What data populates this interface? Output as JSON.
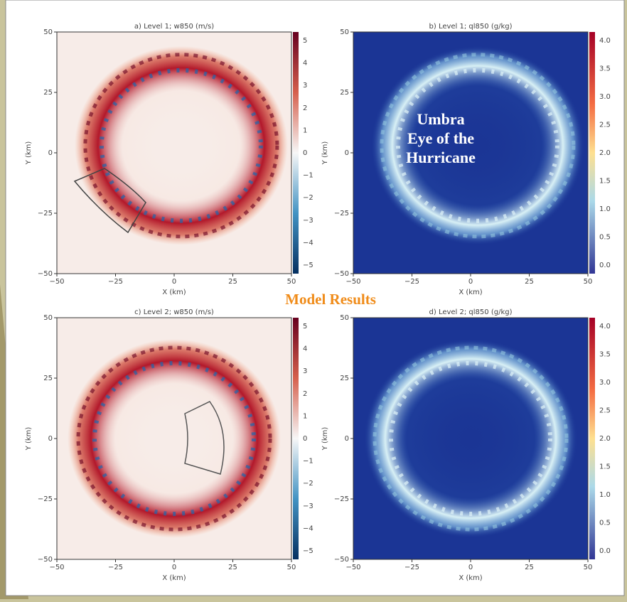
{
  "panels": [
    {
      "title": "a) Level 1;  w850 (m/s)",
      "x_label": "X (km)",
      "y_label": "Y (km)",
      "x_ticks": [
        "−50",
        "−25",
        "0",
        "25",
        "50"
      ],
      "y_ticks": [
        "50",
        "25",
        "0",
        "−25",
        "−50"
      ],
      "colorbar_ticks": [
        "5",
        "4",
        "3",
        "2",
        "1",
        "0",
        "−1",
        "−2",
        "−3",
        "−4",
        "−5"
      ]
    },
    {
      "title": "b) Level 1;  ql850 (g/kg)",
      "x_label": "X (km)",
      "y_label": "Y (km)",
      "x_ticks": [
        "−50",
        "−25",
        "0",
        "25",
        "50"
      ],
      "y_ticks": [
        "50",
        "25",
        "0",
        "−25",
        "−50"
      ],
      "colorbar_ticks": [
        "4.0",
        "3.5",
        "3.0",
        "2.5",
        "2.0",
        "1.5",
        "1.0",
        "0.5",
        "0.0"
      ]
    },
    {
      "title": "c) Level 2;  w850 (m/s)",
      "x_label": "X (km)",
      "y_label": "Y (km)",
      "x_ticks": [
        "−50",
        "−25",
        "0",
        "25",
        "50"
      ],
      "y_ticks": [
        "50",
        "25",
        "0",
        "−25",
        "−50"
      ],
      "colorbar_ticks": [
        "5",
        "4",
        "3",
        "2",
        "1",
        "0",
        "−1",
        "−2",
        "−3",
        "−4",
        "−5"
      ]
    },
    {
      "title": "d) Level 2;  ql850 (g/kg)",
      "x_label": "X (km)",
      "y_label": "Y (km)",
      "x_ticks": [
        "−50",
        "−25",
        "0",
        "25",
        "50"
      ],
      "y_ticks": [
        "50",
        "25",
        "0",
        "−25",
        "−50"
      ],
      "colorbar_ticks": [
        "4.0",
        "3.5",
        "3.0",
        "2.5",
        "2.0",
        "1.5",
        "1.0",
        "0.5",
        "0.0"
      ]
    }
  ],
  "annotations": {
    "umbra": "Umbra",
    "eye": "Eye of the",
    "hurricane": "Hurricane",
    "model_results": "Model Results"
  }
}
